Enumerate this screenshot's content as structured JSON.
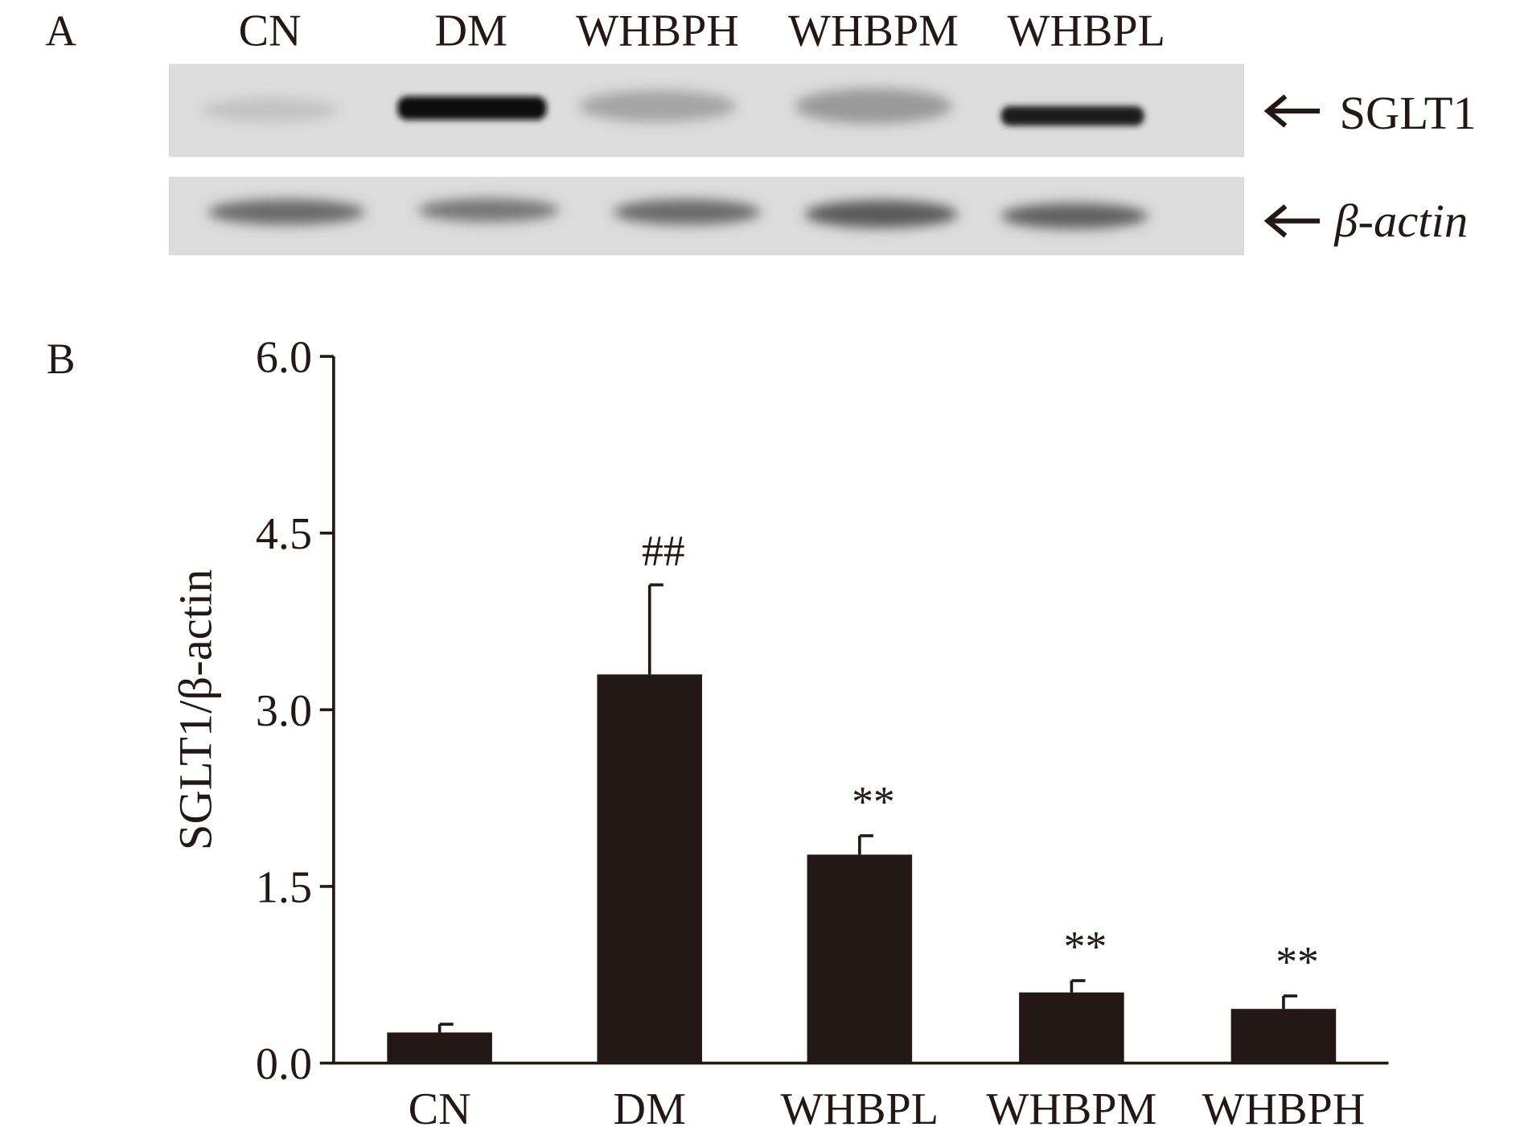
{
  "panel_a": {
    "label": "A",
    "lanes": [
      "CN",
      "DM",
      "WHBPH",
      "WHBPM",
      "WHBPL"
    ],
    "bands": [
      "SGLT1",
      "β-actin"
    ]
  },
  "chart_data": {
    "type": "bar",
    "panel_label": "B",
    "y_label": "SGLT1/β-actin",
    "categories": [
      "CN",
      "DM",
      "WHBPL",
      "WHBPM",
      "WHBPH"
    ],
    "values": [
      0.26,
      3.3,
      1.77,
      0.6,
      0.46
    ],
    "errors": [
      0.07,
      0.76,
      0.16,
      0.1,
      0.11
    ],
    "annotations": [
      null,
      "##",
      "**",
      "**",
      "**"
    ],
    "color": "#231815",
    "ylim": [
      0,
      6
    ],
    "yticks": [
      {
        "value": 0,
        "label": "0.0"
      },
      1.5,
      {
        "value": 3,
        "label": "3.0"
      },
      4.5,
      {
        "value": 6,
        "label": "6.0"
      }
    ],
    "grid": false
  }
}
